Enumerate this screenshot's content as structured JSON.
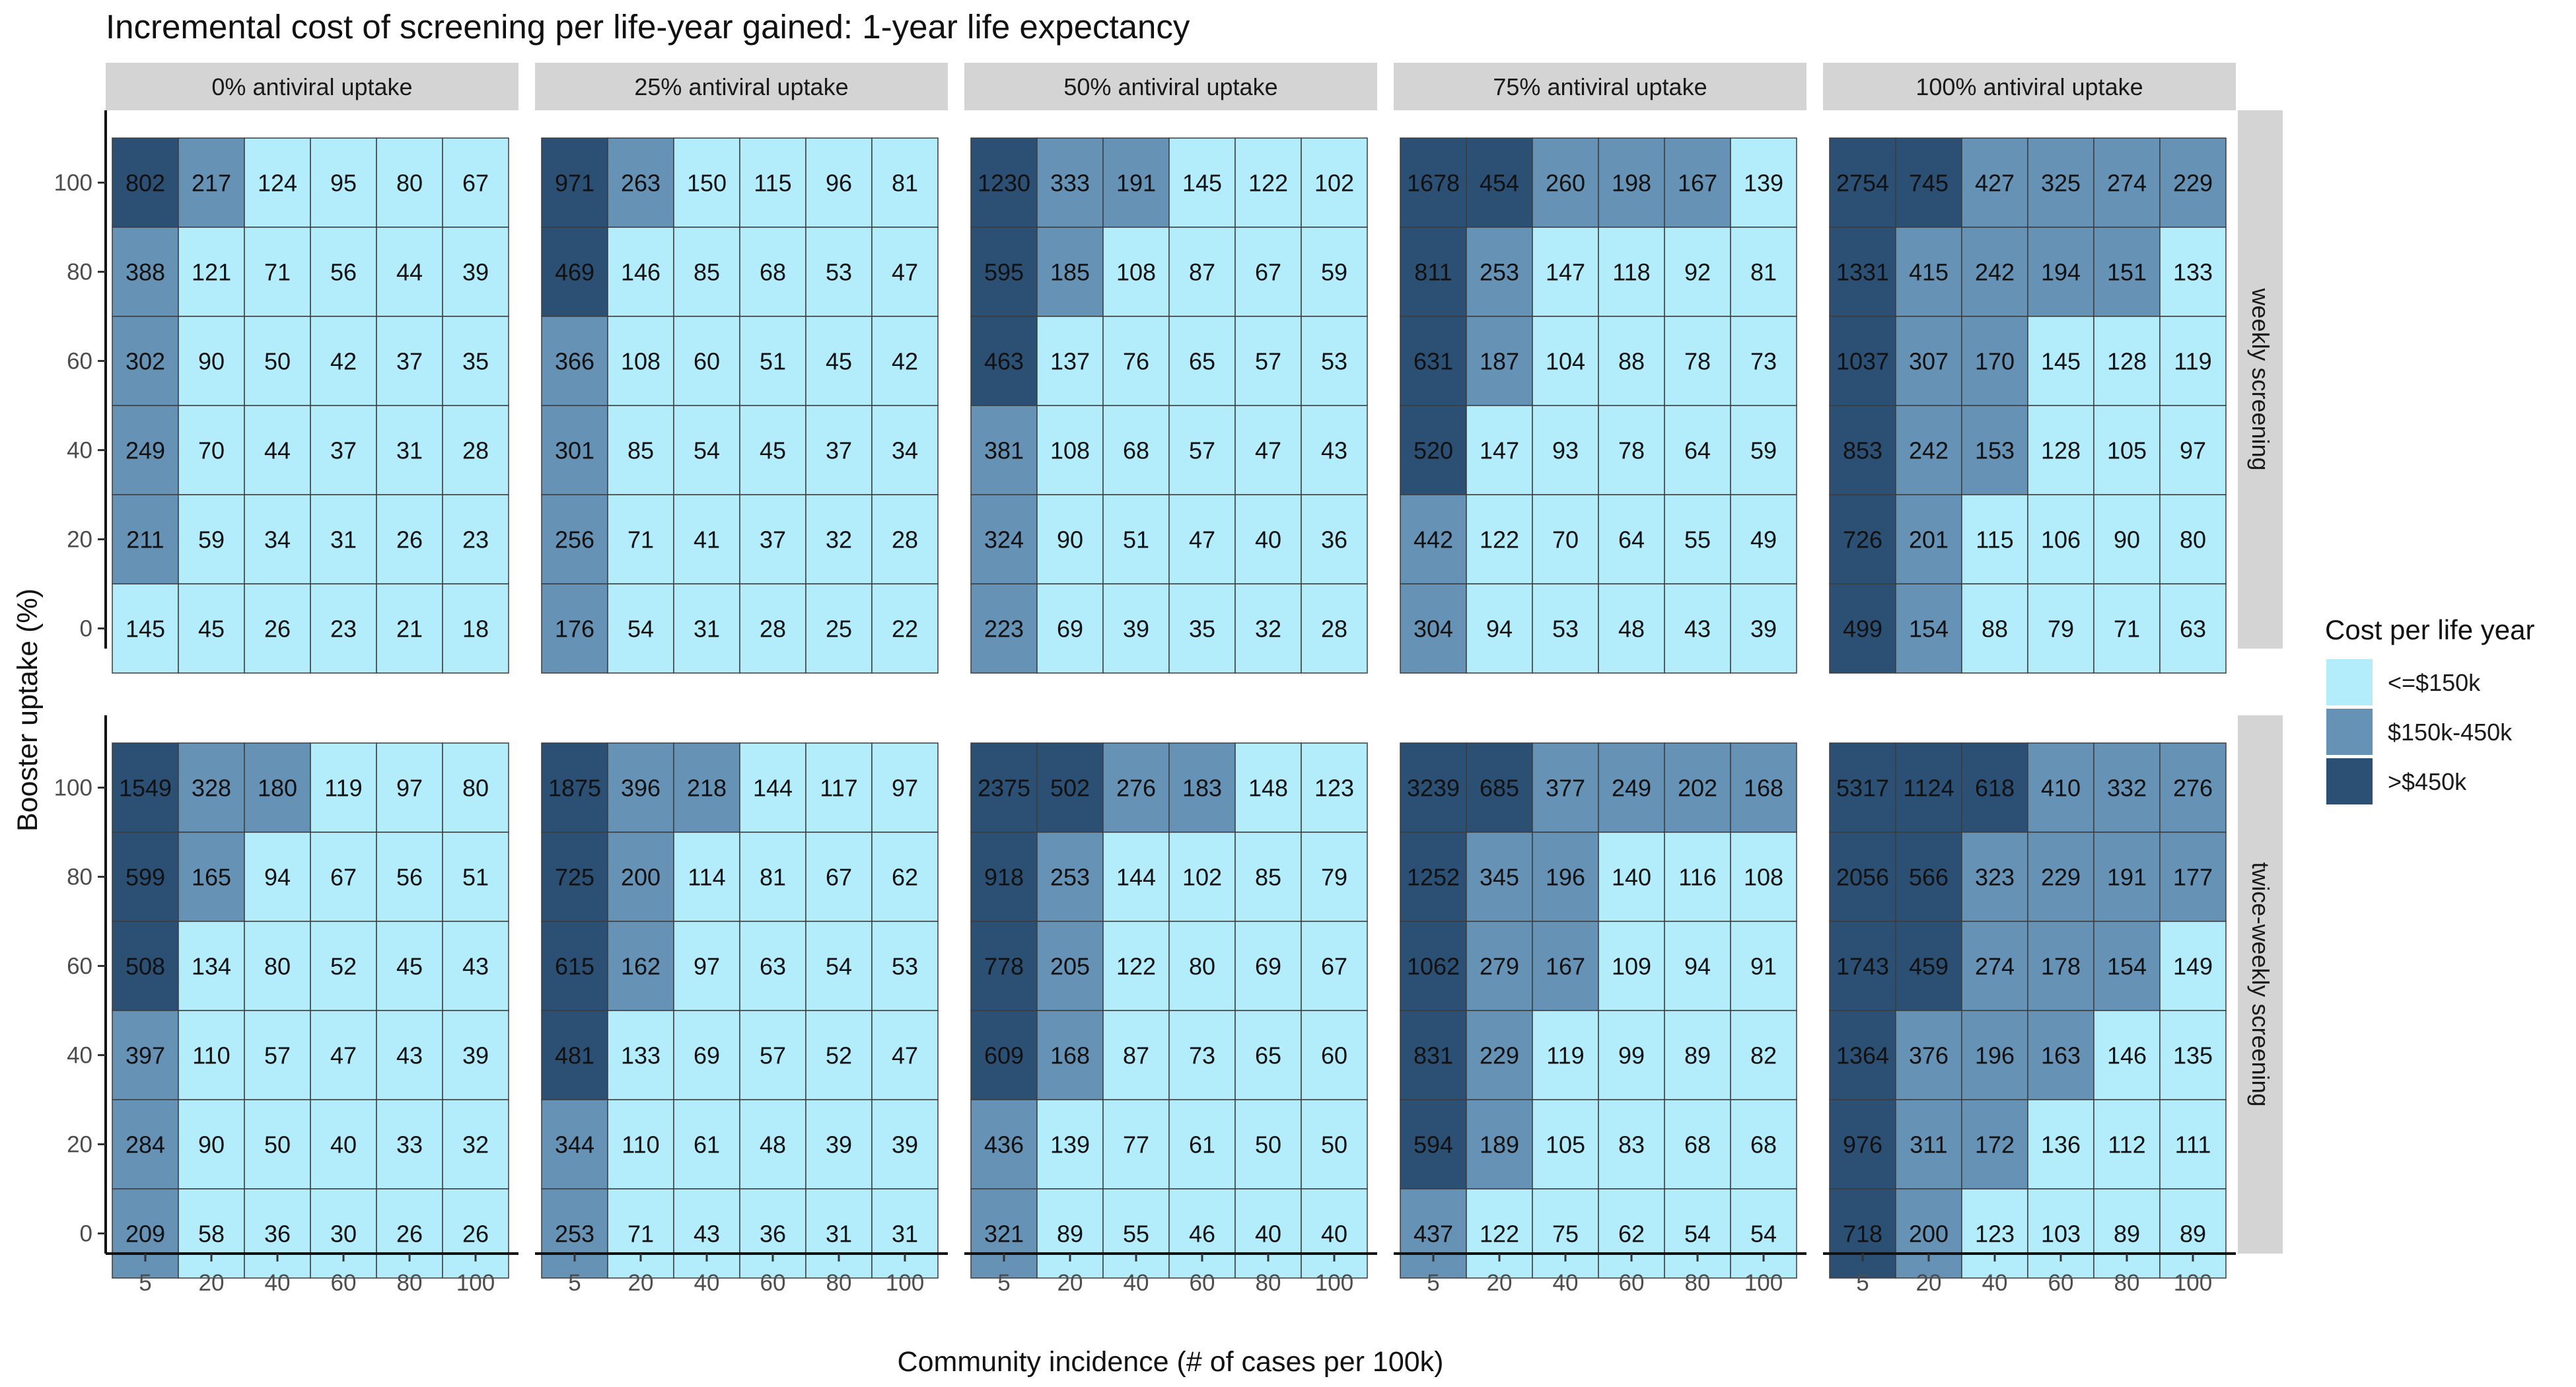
{
  "chart_data": {
    "type": "heatmap",
    "title": "Incremental cost of screening per life-year gained: 1-year life expectancy",
    "xlabel": "Community incidence (# of cases per 100k)",
    "ylabel": "Booster uptake (%)",
    "x_values": [
      "5",
      "20",
      "40",
      "60",
      "80",
      "100"
    ],
    "y_values": [
      "100",
      "80",
      "60",
      "40",
      "20",
      "0"
    ],
    "y_ticks": [
      "100",
      "80",
      "60",
      "40",
      "20",
      "0"
    ],
    "column_facets": [
      "0% antiviral uptake",
      "25% antiviral uptake",
      "50% antiviral uptake",
      "75% antiviral uptake",
      "100% antiviral uptake"
    ],
    "row_facets": [
      "weekly screening",
      "twice-weekly screening"
    ],
    "legend": {
      "title": "Cost per life year",
      "position": "right",
      "items": [
        {
          "label": "<=$150k",
          "color": "#B3ECFB",
          "max": 150
        },
        {
          "label": "$150k-450k",
          "color": "#6692B5",
          "max": 450
        },
        {
          "label": ">$450k",
          "color": "#2C4F74",
          "max": null
        }
      ]
    },
    "grid": false,
    "panels": [
      [
        [
          [
            802,
            217,
            124,
            95,
            80,
            67
          ],
          [
            388,
            121,
            71,
            56,
            44,
            39
          ],
          [
            302,
            90,
            50,
            42,
            37,
            35
          ],
          [
            249,
            70,
            44,
            37,
            31,
            28
          ],
          [
            211,
            59,
            34,
            31,
            26,
            23
          ],
          [
            145,
            45,
            26,
            23,
            21,
            18
          ]
        ],
        [
          [
            971,
            263,
            150,
            115,
            96,
            81
          ],
          [
            469,
            146,
            85,
            68,
            53,
            47
          ],
          [
            366,
            108,
            60,
            51,
            45,
            42
          ],
          [
            301,
            85,
            54,
            45,
            37,
            34
          ],
          [
            256,
            71,
            41,
            37,
            32,
            28
          ],
          [
            176,
            54,
            31,
            28,
            25,
            22
          ]
        ],
        [
          [
            1230,
            333,
            191,
            145,
            122,
            102
          ],
          [
            595,
            185,
            108,
            87,
            67,
            59
          ],
          [
            463,
            137,
            76,
            65,
            57,
            53
          ],
          [
            381,
            108,
            68,
            57,
            47,
            43
          ],
          [
            324,
            90,
            51,
            47,
            40,
            36
          ],
          [
            223,
            69,
            39,
            35,
            32,
            28
          ]
        ],
        [
          [
            1678,
            454,
            260,
            198,
            167,
            139
          ],
          [
            811,
            253,
            147,
            118,
            92,
            81
          ],
          [
            631,
            187,
            104,
            88,
            78,
            73
          ],
          [
            520,
            147,
            93,
            78,
            64,
            59
          ],
          [
            442,
            122,
            70,
            64,
            55,
            49
          ],
          [
            304,
            94,
            53,
            48,
            43,
            39
          ]
        ],
        [
          [
            2754,
            745,
            427,
            325,
            274,
            229
          ],
          [
            1331,
            415,
            242,
            194,
            151,
            133
          ],
          [
            1037,
            307,
            170,
            145,
            128,
            119
          ],
          [
            853,
            242,
            153,
            128,
            105,
            97
          ],
          [
            726,
            201,
            115,
            106,
            90,
            80
          ],
          [
            499,
            154,
            88,
            79,
            71,
            63
          ]
        ]
      ],
      [
        [
          [
            1549,
            328,
            180,
            119,
            97,
            80
          ],
          [
            599,
            165,
            94,
            67,
            56,
            51
          ],
          [
            508,
            134,
            80,
            52,
            45,
            43
          ],
          [
            397,
            110,
            57,
            47,
            43,
            39
          ],
          [
            284,
            90,
            50,
            40,
            33,
            32
          ],
          [
            209,
            58,
            36,
            30,
            26,
            26
          ]
        ],
        [
          [
            1875,
            396,
            218,
            144,
            117,
            97
          ],
          [
            725,
            200,
            114,
            81,
            67,
            62
          ],
          [
            615,
            162,
            97,
            63,
            54,
            53
          ],
          [
            481,
            133,
            69,
            57,
            52,
            47
          ],
          [
            344,
            110,
            61,
            48,
            39,
            39
          ],
          [
            253,
            71,
            43,
            36,
            31,
            31
          ]
        ],
        [
          [
            2375,
            502,
            276,
            183,
            148,
            123
          ],
          [
            918,
            253,
            144,
            102,
            85,
            79
          ],
          [
            778,
            205,
            122,
            80,
            69,
            67
          ],
          [
            609,
            168,
            87,
            73,
            65,
            60
          ],
          [
            436,
            139,
            77,
            61,
            50,
            50
          ],
          [
            321,
            89,
            55,
            46,
            40,
            40
          ]
        ],
        [
          [
            3239,
            685,
            377,
            249,
            202,
            168
          ],
          [
            1252,
            345,
            196,
            140,
            116,
            108
          ],
          [
            1062,
            279,
            167,
            109,
            94,
            91
          ],
          [
            831,
            229,
            119,
            99,
            89,
            82
          ],
          [
            594,
            189,
            105,
            83,
            68,
            68
          ],
          [
            437,
            122,
            75,
            62,
            54,
            54
          ]
        ],
        [
          [
            5317,
            1124,
            618,
            410,
            332,
            276
          ],
          [
            2056,
            566,
            323,
            229,
            191,
            177
          ],
          [
            1743,
            459,
            274,
            178,
            154,
            149
          ],
          [
            1364,
            376,
            196,
            163,
            146,
            135
          ],
          [
            976,
            311,
            172,
            136,
            112,
            111
          ],
          [
            718,
            200,
            123,
            103,
            89,
            89
          ]
        ]
      ]
    ]
  }
}
